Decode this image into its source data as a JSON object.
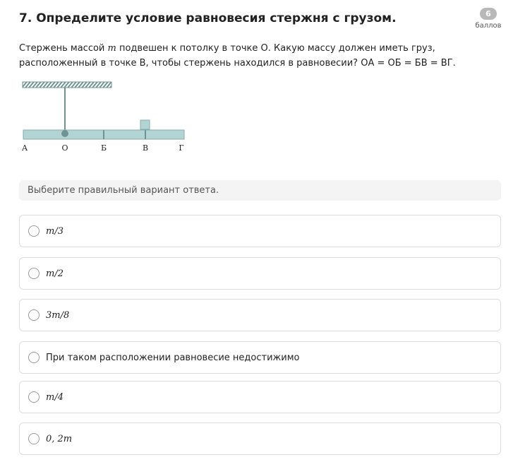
{
  "title": "7. Определите условие равновесия стержня с грузом.",
  "points": {
    "value": "6",
    "label": "баллов"
  },
  "question": "Стержень массой m подвешен к потолку в точке О. Какую массу должен иметь груз, расположенный в точке В, чтобы стержень находился в равновесии? ОА = ОБ = БВ = ВГ.",
  "question_parts": {
    "a": "Стержень массой ",
    "m": "m",
    "b": " подвешен к потолку в точке О. Какую массу должен иметь груз, расположенный в точке В, чтобы стержень находился в равновесии? ОА = ОБ = БВ = ВГ."
  },
  "diagram": {
    "labels": [
      "А",
      "О",
      "Б",
      "В",
      "Г"
    ],
    "color": "#b3d4d4",
    "stroke": "#6f9393"
  },
  "hint": "Выберите правильный вариант ответа.",
  "options": [
    {
      "label": "m/3",
      "math": true
    },
    {
      "label": "m/2",
      "math": true
    },
    {
      "label": "3m/8",
      "math": true
    },
    {
      "label": "При таком расположении равновесие недостижимо",
      "math": false
    },
    {
      "label": "m/4",
      "math": true
    },
    {
      "label": "0, 2m",
      "math": true
    }
  ]
}
